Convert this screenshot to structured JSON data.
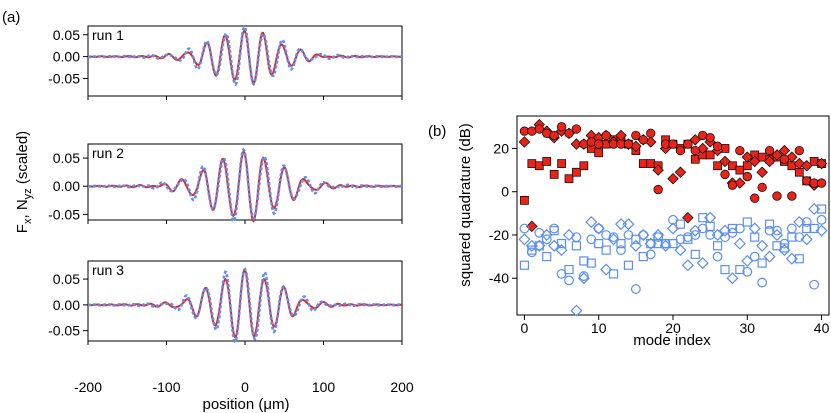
{
  "chart_data": [
    {
      "type": "line",
      "panel_label": "(a)",
      "ylabel": "F_x, N_yz (scaled)",
      "ylabel_main": "F",
      "ylabel_sub1": "x",
      "ylabel_mid": ", N",
      "ylabel_sub2": "yz",
      "ylabel_tail": " (scaled)",
      "xlabel": "position (μm)",
      "xlim": [
        -200,
        200
      ],
      "xticks": [
        "-200",
        "-100",
        "0",
        "100",
        "200"
      ],
      "colors": {
        "solid": "#e8231a",
        "dashed": "#5b8ff0"
      },
      "runs": [
        {
          "label": "run 1",
          "ylim": [
            -0.09,
            0.07
          ],
          "yticks": [
            "0.05",
            "0.00",
            "-0.05"
          ],
          "solid": {
            "envelope_center": 0,
            "envelope_width": 58,
            "amp": 0.06,
            "period": 24,
            "phase": 0.3
          },
          "dashed": {
            "envelope_center": 0,
            "envelope_width": 62,
            "amp": 0.064,
            "period": 24,
            "phase": 0.15
          }
        },
        {
          "label": "run 2",
          "ylim": [
            -0.06,
            0.075
          ],
          "yticks": [
            "0.05",
            "0.00",
            "-0.05"
          ],
          "solid": {
            "envelope_center": 0,
            "envelope_width": 62,
            "amp": 0.06,
            "period": 26,
            "phase": 0.5
          },
          "dashed": {
            "envelope_center": 0,
            "envelope_width": 66,
            "amp": 0.062,
            "period": 26,
            "phase": 0.4
          }
        },
        {
          "label": "run 3",
          "ylim": [
            -0.07,
            0.085
          ],
          "yticks": [
            "0.05",
            "0.00",
            "-0.05"
          ],
          "solid": {
            "envelope_center": 0,
            "envelope_width": 58,
            "amp": 0.064,
            "period": 25,
            "phase": 0.1
          },
          "dashed": {
            "envelope_center": 0,
            "envelope_width": 60,
            "amp": 0.072,
            "period": 25,
            "phase": 0.0
          }
        }
      ]
    },
    {
      "type": "scatter",
      "panel_label": "(b)",
      "xlabel": "mode index",
      "ylabel": "squared quadrature (dB)",
      "xlim": [
        -1,
        41
      ],
      "ylim": [
        -57,
        35
      ],
      "xticks": [
        0,
        10,
        20,
        30,
        40
      ],
      "yticks": [
        20,
        0,
        -20,
        -40
      ],
      "colors": {
        "filled": "#e8231a",
        "open": "#5b8ff0"
      },
      "series": [
        {
          "marker": "square",
          "fill": "filled",
          "x": [
            0,
            1,
            2,
            3,
            4,
            5,
            6,
            7,
            8,
            9,
            10,
            11,
            12,
            13,
            14,
            15,
            16,
            17,
            18,
            19,
            20,
            21,
            22,
            23,
            24,
            25,
            26,
            27,
            28,
            29,
            30,
            31,
            32,
            33,
            34,
            35,
            36,
            37,
            38,
            39,
            40
          ],
          "y": [
            -4,
            13,
            12,
            14,
            8,
            13,
            6,
            9,
            12,
            20,
            18,
            22,
            24,
            24,
            22,
            19,
            13,
            13,
            12,
            24,
            22,
            20,
            22,
            15,
            17,
            17,
            12,
            20,
            12,
            10,
            12,
            17,
            16,
            15,
            16,
            14,
            12,
            9,
            5,
            14,
            13
          ]
        },
        {
          "marker": "diamond",
          "fill": "filled",
          "x": [
            0,
            1,
            2,
            3,
            4,
            5,
            6,
            7,
            8,
            9,
            10,
            11,
            12,
            13,
            14,
            15,
            16,
            17,
            18,
            19,
            20,
            21,
            22,
            23,
            24,
            25,
            26,
            27,
            28,
            29,
            30,
            31,
            32,
            33,
            34,
            35,
            36,
            37,
            38,
            39,
            40
          ],
          "y": [
            23,
            -16,
            31,
            28,
            25,
            28,
            27,
            22,
            22,
            26,
            25,
            26,
            23,
            26,
            22,
            21,
            24,
            23,
            10,
            20,
            6,
            9,
            -12,
            24,
            20,
            23,
            19,
            14,
            4,
            4,
            16,
            14,
            9,
            14,
            17,
            19,
            16,
            13,
            12,
            3,
            13
          ]
        },
        {
          "marker": "circle",
          "fill": "filled",
          "x": [
            0,
            1,
            2,
            3,
            4,
            5,
            6,
            7,
            8,
            9,
            10,
            11,
            12,
            13,
            14,
            15,
            16,
            17,
            18,
            19,
            20,
            21,
            22,
            23,
            24,
            25,
            26,
            27,
            28,
            29,
            30,
            31,
            32,
            33,
            34,
            35,
            36,
            37,
            38,
            39,
            40
          ],
          "y": [
            28,
            28,
            29,
            27,
            26,
            30,
            27,
            29,
            22,
            23,
            22,
            26,
            22,
            22,
            22,
            26,
            24,
            27,
            1,
            22,
            22,
            19,
            22,
            19,
            26,
            25,
            21,
            8,
            3,
            19,
            7,
            -3,
            2,
            19,
            -2,
            15,
            -2,
            19,
            5,
            4,
            4
          ]
        },
        {
          "marker": "square",
          "fill": "open",
          "x": [
            0,
            1,
            2,
            3,
            4,
            5,
            6,
            7,
            8,
            9,
            10,
            11,
            12,
            13,
            14,
            15,
            16,
            17,
            18,
            19,
            20,
            21,
            22,
            23,
            24,
            25,
            26,
            27,
            28,
            29,
            30,
            31,
            32,
            33,
            34,
            35,
            36,
            37,
            38,
            39,
            40
          ],
          "y": [
            -34,
            -27,
            -25,
            -30,
            -18,
            -24,
            -36,
            -25,
            -32,
            -33,
            -24,
            -27,
            -38,
            -24,
            -34,
            -22,
            -30,
            -24,
            -24,
            -24,
            -24,
            -15,
            -22,
            -29,
            -12,
            -16,
            -25,
            -36,
            -17,
            -36,
            -14,
            -21,
            -33,
            -15,
            -25,
            -26,
            -21,
            -31,
            -17,
            -17,
            -8
          ]
        },
        {
          "marker": "diamond",
          "fill": "open",
          "x": [
            0,
            1,
            2,
            3,
            4,
            5,
            6,
            7,
            8,
            9,
            10,
            11,
            12,
            13,
            14,
            15,
            16,
            17,
            18,
            19,
            20,
            21,
            22,
            23,
            24,
            25,
            26,
            27,
            28,
            29,
            30,
            31,
            32,
            33,
            34,
            35,
            36,
            37,
            38,
            39,
            40
          ],
          "y": [
            -22,
            -25,
            -25,
            -20,
            -25,
            -27,
            -20,
            -55,
            -40,
            -14,
            -17,
            -36,
            -22,
            -15,
            -15,
            -25,
            -20,
            -24,
            -20,
            -25,
            -17,
            -27,
            -34,
            -18,
            -33,
            -12,
            -20,
            -18,
            -40,
            -24,
            -32,
            -17,
            -25,
            -30,
            -20,
            -27,
            -31,
            -14,
            -22,
            -8,
            -18
          ]
        },
        {
          "marker": "circle",
          "fill": "open",
          "x": [
            0,
            1,
            2,
            3,
            4,
            5,
            6,
            7,
            8,
            9,
            10,
            11,
            12,
            13,
            14,
            15,
            16,
            17,
            18,
            19,
            20,
            21,
            22,
            23,
            24,
            25,
            26,
            27,
            28,
            29,
            30,
            31,
            32,
            33,
            34,
            35,
            36,
            37,
            38,
            39,
            40
          ],
          "y": [
            -17,
            -28,
            -19,
            -22,
            -17,
            -38,
            -41,
            -21,
            -39,
            -22,
            -17,
            -20,
            -21,
            -27,
            -20,
            -45,
            -20,
            -29,
            -21,
            -24,
            -13,
            -22,
            -21,
            -20,
            -17,
            -20,
            -30,
            -21,
            -19,
            -17,
            -37,
            -30,
            -42,
            -18,
            -18,
            -24,
            -17,
            -21,
            -14,
            -43,
            -13
          ]
        }
      ]
    }
  ]
}
